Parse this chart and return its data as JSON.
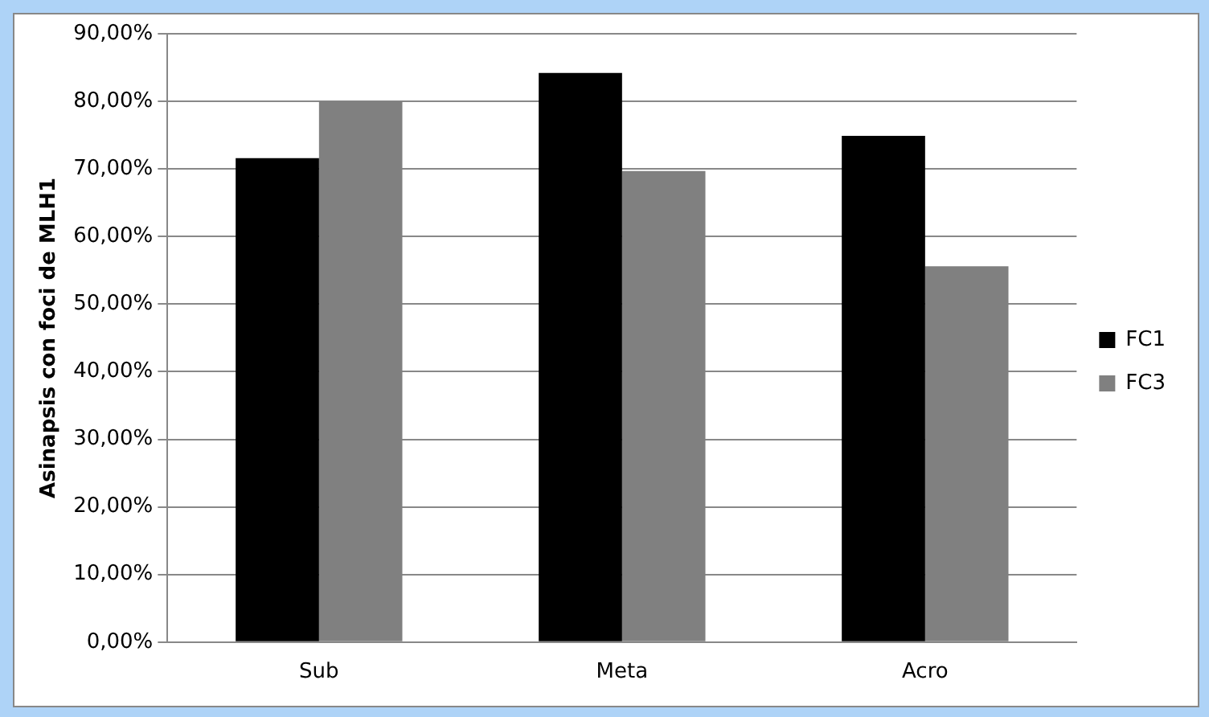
{
  "chart_data": {
    "type": "bar",
    "ylabel": "Asinapsis con foci de MLH1",
    "categories": [
      "Sub",
      "Meta",
      "Acro"
    ],
    "series": [
      {
        "name": "FC1",
        "color": "#000000",
        "values": [
          71.6,
          84.2,
          74.9
        ]
      },
      {
        "name": "FC3",
        "color": "#808080",
        "values": [
          80,
          69.7,
          55.6
        ]
      }
    ],
    "ylim": [
      0,
      90
    ],
    "yticks": [
      {
        "value": 0,
        "label": "0,00%"
      },
      {
        "value": 10,
        "label": "10,00%"
      },
      {
        "value": 20,
        "label": "20,00%"
      },
      {
        "value": 30,
        "label": "30,00%"
      },
      {
        "value": 40,
        "label": "40,00%"
      },
      {
        "value": 50,
        "label": "50,00%"
      },
      {
        "value": 60,
        "label": "60,00%"
      },
      {
        "value": 70,
        "label": "70,00%"
      },
      {
        "value": 80,
        "label": "80,00%"
      },
      {
        "value": 90,
        "label": "90,00%"
      }
    ],
    "grid": "y",
    "legend": "right"
  }
}
